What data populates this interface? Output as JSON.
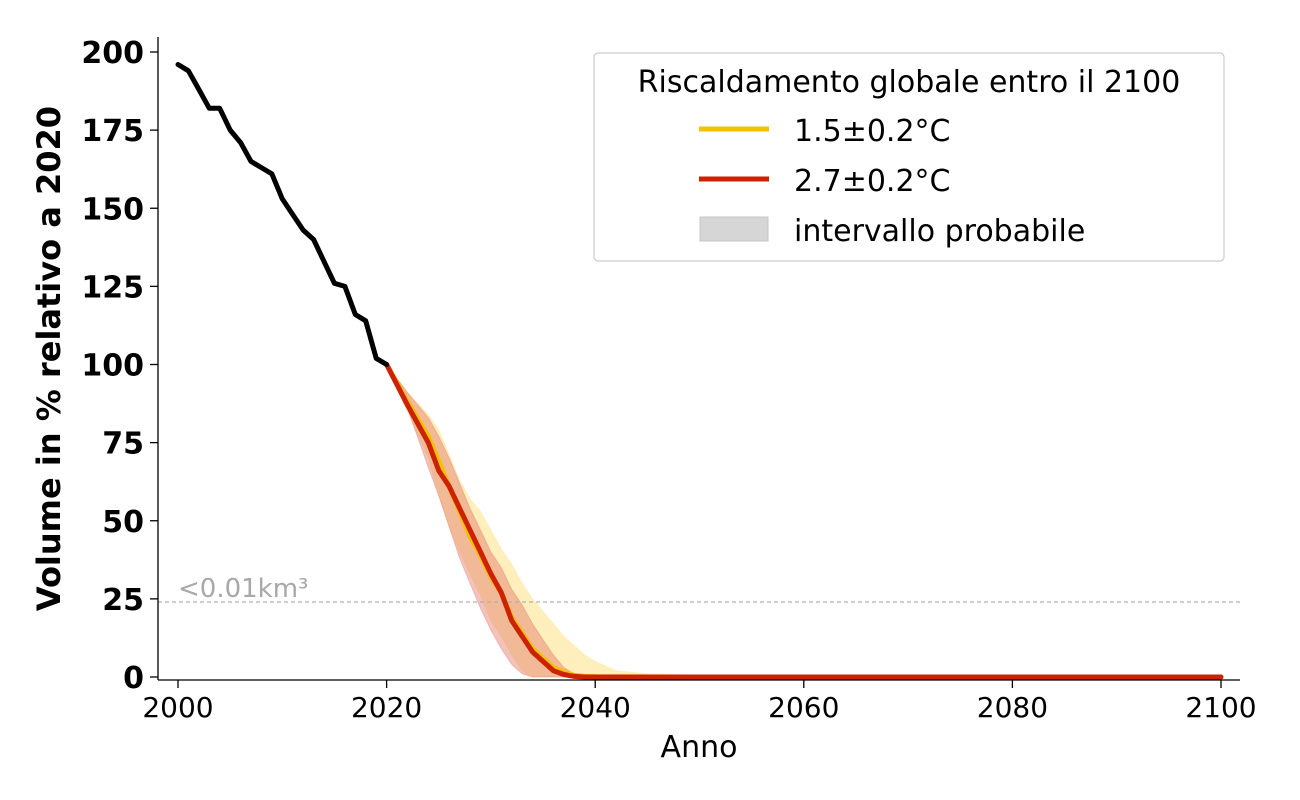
{
  "chart_data": {
    "type": "line",
    "xlabel": "Anno",
    "ylabel": "Volume in % relativo a 2020",
    "xlim": [
      1999,
      2102
    ],
    "ylim": [
      -1,
      205
    ],
    "xticks": [
      2000,
      2020,
      2040,
      2060,
      2080,
      2100
    ],
    "yticks": [
      0,
      25,
      50,
      75,
      100,
      125,
      150,
      175,
      200
    ],
    "grid": false,
    "legend": {
      "title": "Riscaldamento globale entro il 2100",
      "placement": "top-right",
      "entries": [
        "1.5±0.2°C",
        "2.7±0.2°C",
        "intervallo probabile"
      ]
    },
    "annotation": {
      "text": "<0.01km³",
      "y": 24
    },
    "colors": {
      "historical": "#000000",
      "scenario_15": "#f5c000",
      "scenario_27": "#cc2200",
      "band_15": "#fde9a6",
      "band_27": "#e5786a",
      "legend_band": "#d6d6d6",
      "threshold": "#b0b0b0"
    },
    "series": [
      {
        "key": "historical",
        "x": [
          2000,
          2001,
          2002,
          2003,
          2004,
          2005,
          2006,
          2007,
          2008,
          2009,
          2010,
          2011,
          2012,
          2013,
          2014,
          2015,
          2016,
          2017,
          2018,
          2019,
          2020
        ],
        "values": [
          196,
          194,
          188,
          182,
          182,
          175,
          171,
          165,
          163,
          161,
          153,
          148,
          143,
          140,
          133,
          126,
          125,
          116,
          114,
          102,
          100
        ]
      },
      {
        "key": "scenario_15",
        "name": "1.5±0.2°C",
        "x": [
          2020,
          2022,
          2024,
          2025,
          2026,
          2027,
          2028,
          2029,
          2030,
          2031,
          2032,
          2033,
          2034,
          2035,
          2036,
          2037,
          2038,
          2039,
          2040,
          2045,
          2050,
          2060,
          2070,
          2080,
          2090,
          2100
        ],
        "values": [
          100,
          88,
          77,
          69,
          61,
          53,
          45,
          39,
          32,
          27,
          19,
          14,
          9,
          6,
          3,
          1.5,
          0.5,
          0.2,
          0.1,
          0,
          0,
          0,
          0,
          0,
          0,
          0
        ],
        "band_x": [
          2020,
          2022,
          2024,
          2025,
          2026,
          2027,
          2028,
          2029,
          2030,
          2031,
          2032,
          2033,
          2034,
          2035,
          2036,
          2037,
          2038,
          2039,
          2040,
          2042,
          2045,
          2050,
          2060,
          2080,
          2100
        ],
        "band_low": [
          100,
          85,
          70,
          58,
          48,
          40,
          33,
          26,
          18,
          13,
          7,
          2,
          0,
          0,
          0,
          0,
          0,
          0,
          0,
          0,
          0,
          0,
          0,
          0,
          0
        ],
        "band_high": [
          100,
          91,
          84,
          79,
          71,
          63,
          57,
          53,
          47,
          41,
          36,
          30,
          25,
          21,
          17,
          13,
          10,
          7,
          5,
          2,
          1,
          0.5,
          0,
          0,
          0
        ]
      },
      {
        "key": "scenario_27",
        "name": "2.7±0.2°C",
        "x": [
          2020,
          2022,
          2024,
          2025,
          2026,
          2027,
          2028,
          2029,
          2030,
          2031,
          2032,
          2033,
          2034,
          2035,
          2036,
          2037,
          2038,
          2039,
          2040,
          2045,
          2050,
          2060,
          2070,
          2080,
          2090,
          2100
        ],
        "values": [
          100,
          87,
          75,
          66,
          61,
          54,
          47,
          40,
          33,
          27,
          18,
          13,
          8,
          5,
          2,
          0.8,
          0.2,
          0,
          0,
          0,
          0,
          0,
          0,
          0,
          0,
          0
        ],
        "band_x": [
          2020,
          2022,
          2024,
          2025,
          2026,
          2027,
          2028,
          2029,
          2030,
          2031,
          2032,
          2033,
          2034,
          2035,
          2036,
          2037,
          2038,
          2039,
          2040,
          2045,
          2050,
          2100
        ],
        "band_low": [
          100,
          86,
          67,
          58,
          48,
          38,
          30,
          22,
          15,
          9,
          4,
          1,
          0,
          0,
          0,
          0,
          0,
          0,
          0,
          0,
          0,
          0
        ],
        "band_high": [
          100,
          91,
          83,
          77,
          70,
          62,
          54,
          47,
          40,
          35,
          28,
          23,
          17,
          12,
          7,
          3,
          1,
          0.3,
          0,
          0,
          0,
          0
        ]
      }
    ]
  }
}
